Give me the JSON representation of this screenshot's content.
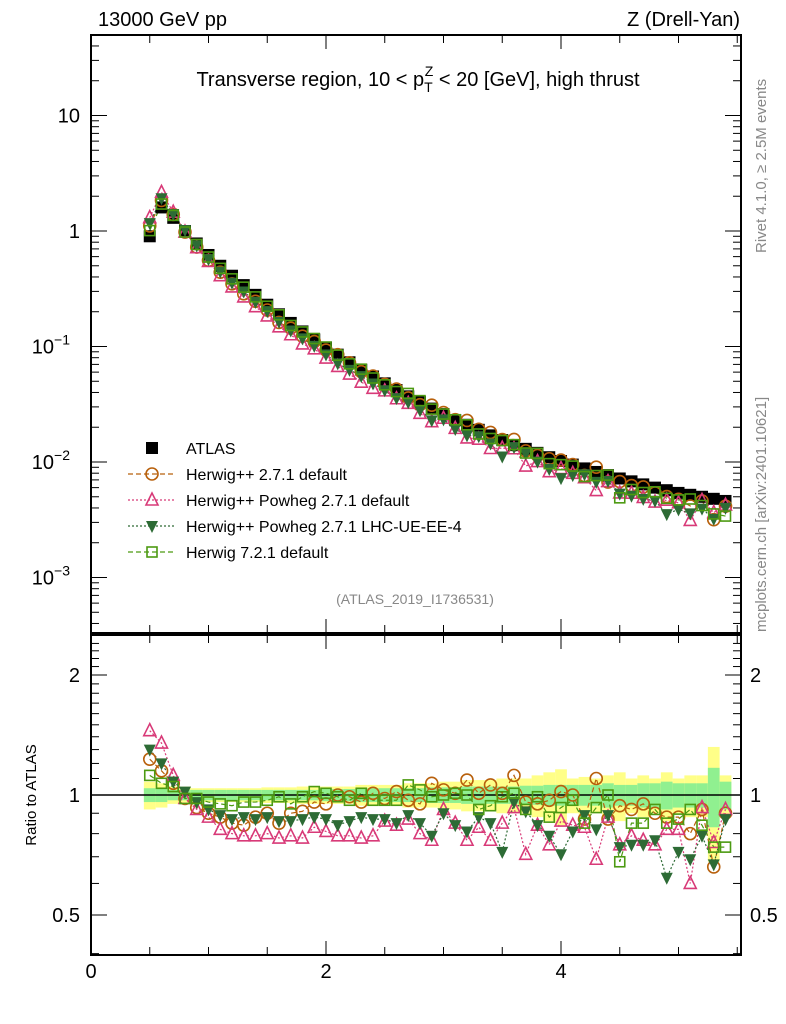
{
  "header": {
    "left": "13000 GeV pp",
    "right": "Z (Drell-Yan)",
    "side_top": "Rivet 4.1.0, ≥ 2.5M events",
    "side_bottom": "mcplots.cern.ch [arXiv:2401.10621]",
    "analysis_id": "(ATLAS_2019_I1736531)"
  },
  "chart_data": {
    "type": "scatter",
    "title_parts": [
      "Transverse region, 10 < p",
      "T",
      "Z",
      " < 20 [GeV], high thrust"
    ],
    "xlabel": "",
    "ylabel": "",
    "ratio_ylabel": "Ratio to ATLAS",
    "xlim": [
      0,
      5.53
    ],
    "ylim": [
      0.00035,
      50
    ],
    "ratio_ylim": [
      0.4,
      2.5
    ],
    "yscale": "log",
    "ratio_yscale": "log",
    "x_tick_labels": [
      {
        "v": 0,
        "t": "0"
      },
      {
        "v": 2,
        "t": "2"
      },
      {
        "v": 4,
        "t": "4"
      }
    ],
    "y_tick_labels": [
      {
        "v": 10,
        "base": "10",
        "exp": ""
      },
      {
        "v": 1,
        "base": "1",
        "exp": ""
      },
      {
        "v": 0.1,
        "base": "10",
        "exp": "−1"
      },
      {
        "v": 0.01,
        "base": "10",
        "exp": "−2"
      },
      {
        "v": 0.001,
        "base": "10",
        "exp": "−3"
      }
    ],
    "ratio_tick_labels": [
      {
        "v": 2,
        "t": "2"
      },
      {
        "v": 1,
        "t": "1"
      },
      {
        "v": 0.5,
        "t": "0.5"
      }
    ],
    "legend_position": "lower-left",
    "x": [
      0.5,
      0.6,
      0.7,
      0.8,
      0.9,
      1.0,
      1.1,
      1.2,
      1.3,
      1.4,
      1.5,
      1.6,
      1.7,
      1.8,
      1.9,
      2.0,
      2.1,
      2.2,
      2.3,
      2.4,
      2.5,
      2.6,
      2.7,
      2.8,
      2.9,
      3.0,
      3.1,
      3.2,
      3.3,
      3.4,
      3.5,
      3.6,
      3.7,
      3.8,
      3.9,
      4.0,
      4.1,
      4.2,
      4.3,
      4.4,
      4.5,
      4.6,
      4.7,
      4.8,
      4.9,
      5.0,
      5.1,
      5.2,
      5.3,
      5.4
    ],
    "data": {
      "name": "ATLAS",
      "color": "#000000",
      "values": [
        0.9,
        1.6,
        1.3,
        1.0,
        0.78,
        0.62,
        0.5,
        0.41,
        0.34,
        0.28,
        0.23,
        0.19,
        0.16,
        0.135,
        0.115,
        0.098,
        0.085,
        0.073,
        0.063,
        0.055,
        0.048,
        0.042,
        0.037,
        0.033,
        0.029,
        0.026,
        0.023,
        0.021,
        0.019,
        0.017,
        0.0155,
        0.014,
        0.013,
        0.012,
        0.011,
        0.0102,
        0.0095,
        0.0088,
        0.0082,
        0.0077,
        0.0072,
        0.0068,
        0.0064,
        0.006,
        0.0057,
        0.0054,
        0.0052,
        0.005,
        0.0048,
        0.0046
      ],
      "stat_rel": [
        0.04,
        0.04,
        0.03,
        0.03,
        0.03,
        0.03,
        0.03,
        0.03,
        0.03,
        0.03,
        0.03,
        0.03,
        0.03,
        0.03,
        0.03,
        0.035,
        0.035,
        0.035,
        0.04,
        0.04,
        0.04,
        0.04,
        0.04,
        0.04,
        0.045,
        0.045,
        0.045,
        0.05,
        0.05,
        0.05,
        0.05,
        0.05,
        0.055,
        0.055,
        0.06,
        0.06,
        0.06,
        0.06,
        0.06,
        0.07,
        0.06,
        0.06,
        0.07,
        0.07,
        0.08,
        0.07,
        0.07,
        0.07,
        0.17,
        0.08
      ],
      "total_rel": [
        0.08,
        0.07,
        0.05,
        0.05,
        0.04,
        0.04,
        0.04,
        0.04,
        0.04,
        0.04,
        0.045,
        0.045,
        0.045,
        0.05,
        0.05,
        0.05,
        0.05,
        0.05,
        0.06,
        0.06,
        0.06,
        0.06,
        0.07,
        0.07,
        0.07,
        0.08,
        0.08,
        0.09,
        0.09,
        0.09,
        0.1,
        0.1,
        0.1,
        0.12,
        0.14,
        0.16,
        0.1,
        0.11,
        0.1,
        0.12,
        0.14,
        0.1,
        0.12,
        0.1,
        0.14,
        0.1,
        0.12,
        0.12,
        0.32,
        0.12
      ],
      "band_colors": {
        "stat": "#90f090",
        "total": "#ffff88"
      }
    },
    "series": [
      {
        "name": "Herwig++ 2.7.1 default",
        "color": "#b8600c",
        "marker": "open-circle",
        "line": "dashed",
        "ratio": [
          1.23,
          1.15,
          1.07,
          0.98,
          0.93,
          0.9,
          0.88,
          0.85,
          0.84,
          0.88,
          0.9,
          0.85,
          0.9,
          0.91,
          0.96,
          0.95,
          1.0,
          0.99,
          0.96,
          1.01,
          0.98,
          1.02,
          0.97,
          0.95,
          1.07,
          1.03,
          1.01,
          1.09,
          1.01,
          1.06,
          1.01,
          1.12,
          0.96,
          0.95,
          0.97,
          1.02,
          1.0,
          0.87,
          1.1,
          0.87,
          0.94,
          0.92,
          0.95,
          0.9,
          0.88,
          0.88,
          0.8,
          0.92,
          0.66,
          0.9
        ]
      },
      {
        "name": "Herwig++ Powheg 2.7.1 default",
        "color": "#d83a78",
        "marker": "open-triangle-up",
        "line": "dotted",
        "ratio": [
          1.45,
          1.35,
          1.12,
          0.98,
          0.92,
          0.88,
          0.82,
          0.8,
          0.79,
          0.79,
          0.8,
          0.78,
          0.79,
          0.78,
          0.83,
          0.81,
          0.79,
          0.79,
          0.78,
          0.79,
          0.86,
          0.84,
          0.87,
          0.8,
          0.77,
          0.92,
          0.85,
          0.77,
          0.83,
          0.77,
          0.85,
          0.93,
          0.71,
          0.84,
          0.75,
          0.86,
          0.84,
          0.83,
          0.69,
          0.88,
          0.75,
          0.79,
          0.77,
          0.75,
          0.82,
          0.82,
          0.6,
          0.93,
          0.76,
          0.92
        ]
      },
      {
        "name": "Herwig++ Powheg 2.7.1 LHC-UE-EE-4",
        "color": "#2d6b35",
        "marker": "filled-triangle-down",
        "line": "dotted",
        "ratio": [
          1.3,
          1.2,
          1.08,
          1.02,
          0.96,
          0.92,
          0.89,
          0.87,
          0.88,
          0.87,
          0.88,
          0.86,
          0.86,
          0.87,
          0.88,
          0.87,
          0.84,
          0.86,
          0.88,
          0.87,
          0.87,
          0.85,
          0.89,
          0.85,
          0.79,
          0.9,
          0.84,
          0.81,
          0.88,
          0.85,
          0.72,
          0.96,
          0.91,
          0.84,
          0.79,
          0.71,
          0.81,
          0.89,
          0.82,
          0.89,
          0.74,
          0.75,
          0.75,
          0.77,
          0.62,
          0.72,
          0.69,
          0.79,
          0.67,
          0.87
        ]
      },
      {
        "name": "Herwig 7.2.1 default",
        "color": "#4c9a12",
        "marker": "open-square",
        "line": "dashed",
        "ratio": [
          1.12,
          1.07,
          1.05,
          0.98,
          0.98,
          0.96,
          0.95,
          0.94,
          0.96,
          0.96,
          0.97,
          0.99,
          0.95,
          0.99,
          1.02,
          1.01,
          0.99,
          0.97,
          1.01,
          0.97,
          0.97,
          0.97,
          1.06,
          1.03,
          0.99,
          1.0,
          1.01,
          1.0,
          0.92,
          0.94,
          0.99,
          1.01,
          0.92,
          0.99,
          0.88,
          0.93,
          0.97,
          0.85,
          0.93,
          1.0,
          0.68,
          0.85,
          0.85,
          0.92,
          0.85,
          0.87,
          0.92,
          0.84,
          0.74,
          0.74
        ]
      }
    ]
  }
}
